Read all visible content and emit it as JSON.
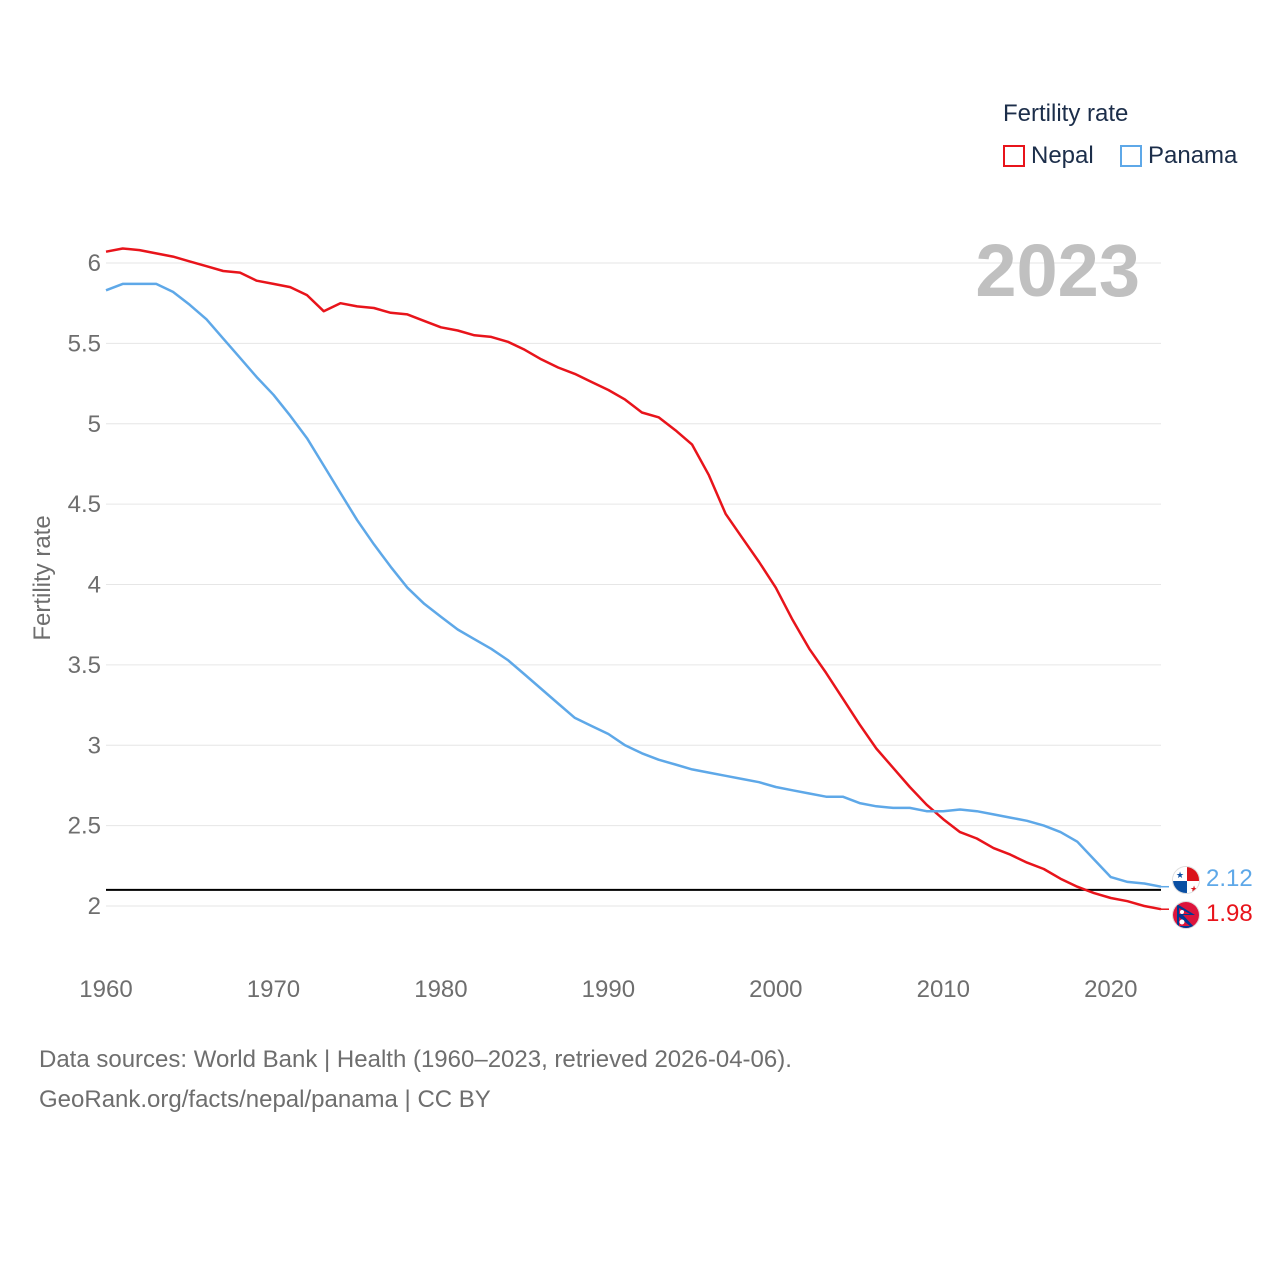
{
  "legend": {
    "title": "Fertility rate",
    "items": [
      {
        "name": "Nepal",
        "color": "#e8141b"
      },
      {
        "name": "Panama",
        "color": "#5ea8e8"
      }
    ]
  },
  "year_label": "2023",
  "end_labels": {
    "panama": "2.12",
    "nepal": "1.98"
  },
  "footer": {
    "line1": "Data sources: World Bank | Health (1960–2023, retrieved 2026-04-06).",
    "line2": "GeoRank.org/facts/nepal/panama | CC BY"
  },
  "chart_data": {
    "type": "line",
    "title": "Fertility rate",
    "xlabel": "",
    "ylabel": "Fertility rate",
    "xlim": [
      1960,
      2023
    ],
    "ylim": [
      1.8,
      6.2
    ],
    "yticks": [
      2,
      2.5,
      3,
      3.5,
      4,
      4.5,
      5,
      5.5,
      6
    ],
    "ytick_labels": [
      "2",
      "2.5",
      "3",
      "3.5",
      "4",
      "4.5",
      "5",
      "5.5",
      "6"
    ],
    "xticks": [
      1960,
      1970,
      1980,
      1990,
      2000,
      2010,
      2020
    ],
    "xtick_labels": [
      "1960",
      "1970",
      "1980",
      "1990",
      "2000",
      "2010",
      "2020"
    ],
    "reference_line": 2.1,
    "grid": true,
    "x": [
      1960,
      1961,
      1962,
      1963,
      1964,
      1965,
      1966,
      1967,
      1968,
      1969,
      1970,
      1971,
      1972,
      1973,
      1974,
      1975,
      1976,
      1977,
      1978,
      1979,
      1980,
      1981,
      1982,
      1983,
      1984,
      1985,
      1986,
      1987,
      1988,
      1989,
      1990,
      1991,
      1992,
      1993,
      1994,
      1995,
      1996,
      1997,
      1998,
      1999,
      2000,
      2001,
      2002,
      2003,
      2004,
      2005,
      2006,
      2007,
      2008,
      2009,
      2010,
      2011,
      2012,
      2013,
      2014,
      2015,
      2016,
      2017,
      2018,
      2019,
      2020,
      2021,
      2022,
      2023
    ],
    "series": [
      {
        "name": "Nepal",
        "color": "#e8141b",
        "values": [
          6.07,
          6.09,
          6.08,
          6.06,
          6.04,
          6.01,
          5.98,
          5.95,
          5.94,
          5.89,
          5.87,
          5.85,
          5.8,
          5.7,
          5.75,
          5.73,
          5.72,
          5.69,
          5.68,
          5.64,
          5.6,
          5.58,
          5.55,
          5.54,
          5.51,
          5.46,
          5.4,
          5.35,
          5.31,
          5.26,
          5.21,
          5.15,
          5.07,
          5.04,
          4.96,
          4.87,
          4.68,
          4.44,
          4.29,
          4.14,
          3.98,
          3.78,
          3.6,
          3.45,
          3.29,
          3.13,
          2.98,
          2.86,
          2.74,
          2.63,
          2.54,
          2.46,
          2.42,
          2.36,
          2.32,
          2.27,
          2.23,
          2.17,
          2.12,
          2.08,
          2.05,
          2.03,
          2.0,
          1.98
        ]
      },
      {
        "name": "Panama",
        "color": "#5ea8e8",
        "values": [
          5.83,
          5.87,
          5.87,
          5.87,
          5.82,
          5.74,
          5.65,
          5.53,
          5.41,
          5.29,
          5.18,
          5.05,
          4.91,
          4.74,
          4.57,
          4.4,
          4.25,
          4.11,
          3.98,
          3.88,
          3.8,
          3.72,
          3.66,
          3.6,
          3.53,
          3.44,
          3.35,
          3.26,
          3.17,
          3.12,
          3.07,
          3.0,
          2.95,
          2.91,
          2.88,
          2.85,
          2.83,
          2.81,
          2.79,
          2.77,
          2.74,
          2.72,
          2.7,
          2.68,
          2.68,
          2.64,
          2.62,
          2.61,
          2.61,
          2.59,
          2.59,
          2.6,
          2.59,
          2.57,
          2.55,
          2.53,
          2.5,
          2.46,
          2.4,
          2.29,
          2.18,
          2.15,
          2.14,
          2.12
        ]
      }
    ]
  }
}
